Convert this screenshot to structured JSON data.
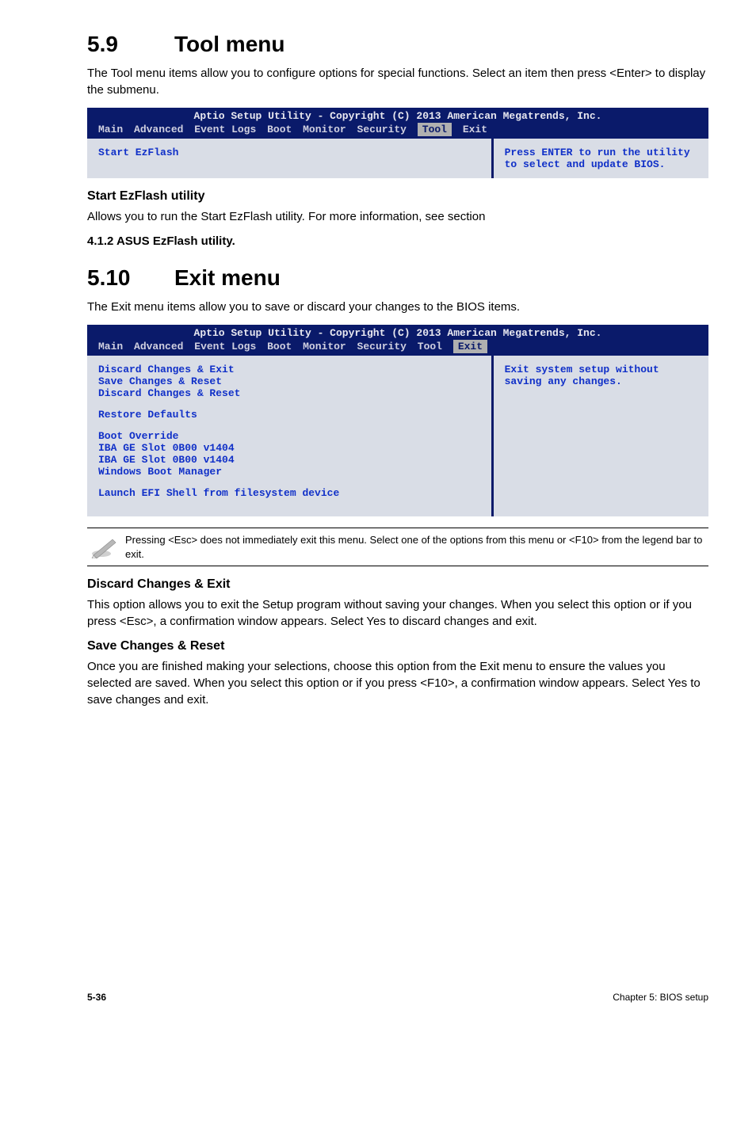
{
  "section59": {
    "num": "5.9",
    "title": "Tool menu",
    "intro": "The Tool menu items allow you to configure options for special functions. Select an item then press <Enter> to display the submenu."
  },
  "bios1": {
    "header": "Aptio Setup Utility - Copyright (C) 2013 American Megatrends, Inc.",
    "menu": [
      "Main",
      "Advanced",
      "Event Logs",
      "Boot",
      "Monitor",
      "Security",
      "Tool",
      "Exit"
    ],
    "selected": "Tool",
    "left_lines": [
      "Start EzFlash"
    ],
    "right_text": "Press ENTER to run the utility to select and update BIOS."
  },
  "startEz": {
    "heading": "Start EzFlash utility",
    "text": "Allows you to run the Start EzFlash utility. For more information, see section",
    "bold": "4.1.2 ASUS EzFlash utility"
  },
  "section510": {
    "num": "5.10",
    "title": "Exit menu",
    "intro": "The Exit menu items allow you to save or discard your changes to the BIOS items."
  },
  "bios2": {
    "header": "Aptio Setup Utility - Copyright (C) 2013 American Megatrends, Inc.",
    "menu": [
      "Main",
      "Advanced",
      "Event Logs",
      "Boot",
      "Monitor",
      "Security",
      "Tool",
      "Exit"
    ],
    "selected": "Exit",
    "blocks": [
      [
        "Discard Changes & Exit",
        "Save Changes & Reset",
        "Discard Changes & Reset"
      ],
      [
        "Restore Defaults"
      ],
      [
        "Boot Override",
        "IBA GE Slot 0B00 v1404",
        "IBA GE Slot 0B00 v1404",
        "Windows Boot Manager"
      ],
      [
        "Launch EFI Shell from filesystem device"
      ]
    ],
    "right_text": "Exit system setup without saving any changes."
  },
  "note": "Pressing <Esc> does not immediately exit this menu. Select one of the options from this menu or <F10> from the legend bar to exit.",
  "discard": {
    "heading": "Discard Changes & Exit",
    "text": "This option allows you to exit the Setup program without saving your changes. When you select this option or if you press <Esc>, a confirmation window appears. Select Yes to discard changes and exit."
  },
  "save": {
    "heading": "Save Changes & Reset",
    "text": "Once you are finished making your selections, choose this option from the Exit menu to ensure the values you selected are saved. When you select this option or if you press <F10>, a confirmation window appears. Select Yes to save changes and exit."
  },
  "footer": {
    "left": "5-36",
    "right": "Chapter 5: BIOS setup"
  }
}
